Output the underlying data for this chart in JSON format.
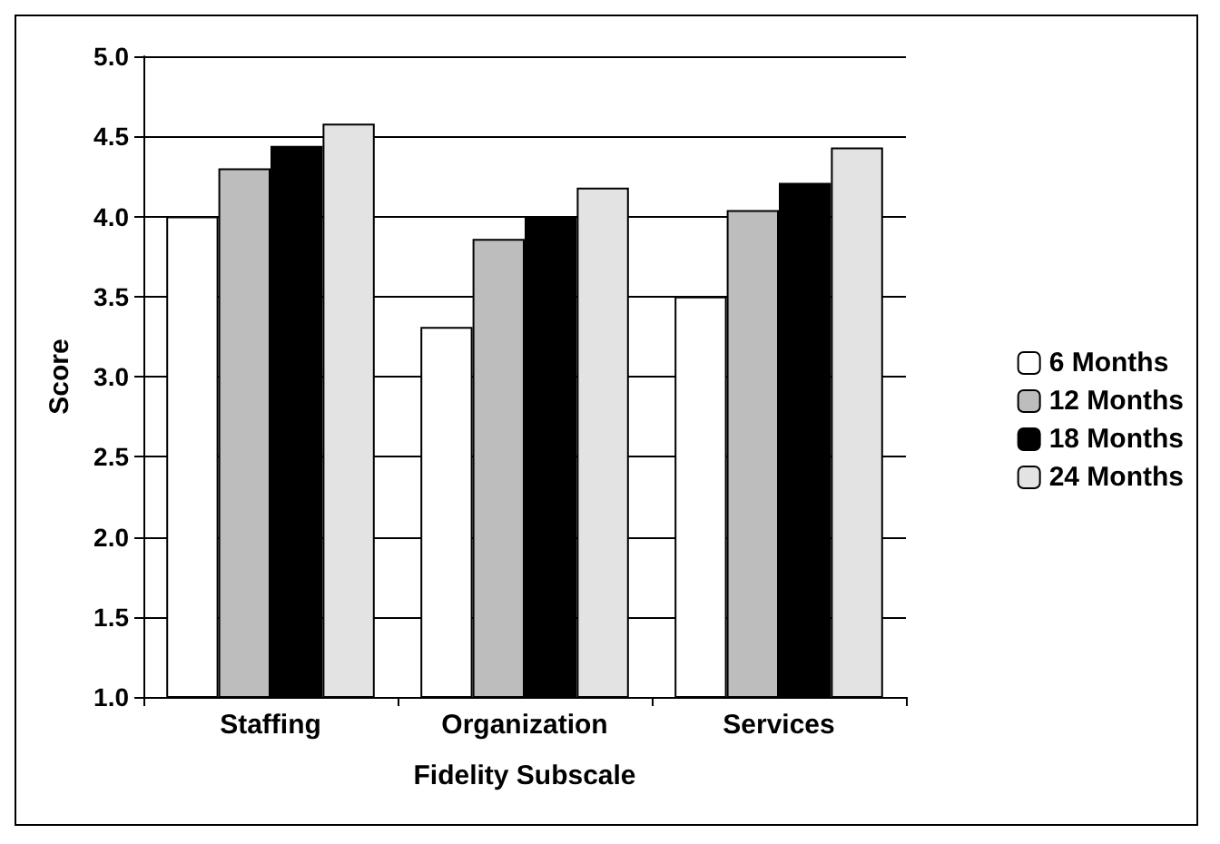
{
  "chart_data": {
    "type": "bar",
    "xlabel": "Fidelity Subscale",
    "ylabel": "Score",
    "categories": [
      "Staffing",
      "Organization",
      "Services"
    ],
    "series": [
      {
        "name": "6 Months",
        "color": "#ffffff",
        "values": [
          4.0,
          3.31,
          3.5
        ]
      },
      {
        "name": "12 Months",
        "color": "#bdbdbd",
        "values": [
          4.3,
          3.86,
          4.04
        ]
      },
      {
        "name": "18 Months",
        "color": "#000000",
        "values": [
          4.44,
          4.0,
          4.21
        ]
      },
      {
        "name": "24 Months",
        "color": "#e3e3e3",
        "values": [
          4.58,
          4.18,
          4.43
        ]
      }
    ],
    "ylim": [
      1.0,
      5.0
    ],
    "yticks": [
      {
        "value": 1,
        "label": "1.0"
      },
      {
        "value": 1.5,
        "label": "1.5"
      },
      {
        "value": 2,
        "label": "2.0"
      },
      {
        "value": 2.5,
        "label": "2.5"
      },
      {
        "value": 3,
        "label": "3.0"
      },
      {
        "value": 3.5,
        "label": "3.5"
      },
      {
        "value": 4,
        "label": "4.0"
      },
      {
        "value": 4.5,
        "label": "4.5"
      },
      {
        "value": 5,
        "label": "5.0"
      }
    ],
    "grid": "y",
    "legend": "right"
  }
}
